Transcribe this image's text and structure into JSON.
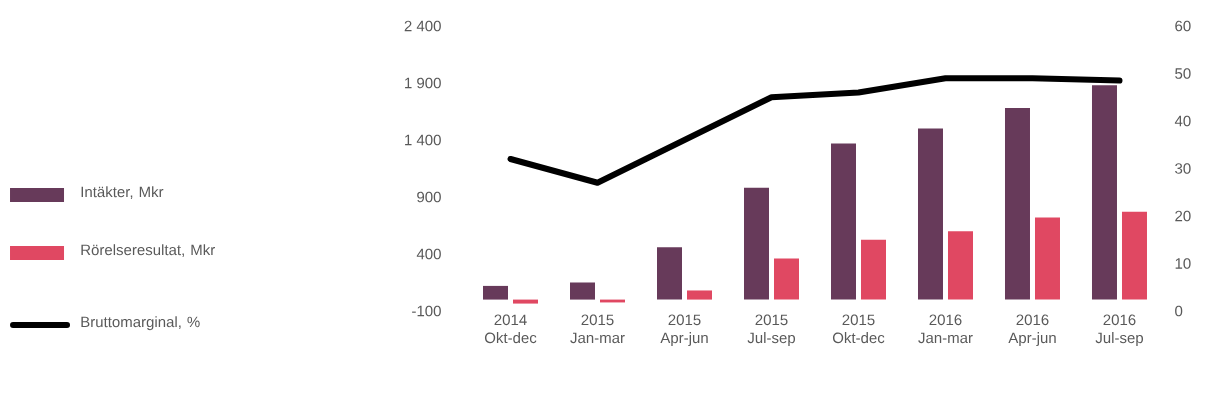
{
  "chart_data": {
    "type": "bar",
    "categories": [
      "2014 Okt-dec",
      "2015 Jan-mar",
      "2015 Apr-jun",
      "2015 Jul-sep",
      "2015 Okt-dec",
      "2016 Jan-mar",
      "2016 Apr-jun",
      "2016 Jul-sep"
    ],
    "series": [
      {
        "name": "Intäkter, Mkr",
        "color": "#673a5a",
        "values": [
          120,
          150,
          460,
          980,
          1370,
          1500,
          1680,
          1880
        ]
      },
      {
        "name": "Rörelseresultat, Mkr",
        "color": "#e04862",
        "values": [
          -35,
          -25,
          80,
          360,
          525,
          600,
          720,
          770
        ]
      },
      {
        "name": "Bruttomarginal, %",
        "color": "#000000",
        "type": "line",
        "axis": "y2",
        "values": [
          32,
          27,
          36,
          45,
          46,
          49,
          49,
          48.5
        ]
      }
    ],
    "ylim": [
      -100,
      2400
    ],
    "yticks": [
      -100,
      400,
      900,
      {
        "value": 1400,
        "label": "1 400"
      },
      {
        "value": 1900,
        "label": "1 900"
      },
      {
        "value": 2400,
        "label": "2 400"
      }
    ],
    "y2lim": [
      0,
      60
    ],
    "y2ticks": [
      0,
      10,
      20,
      30,
      40,
      50,
      60
    ],
    "legend": "left",
    "grid": false
  }
}
